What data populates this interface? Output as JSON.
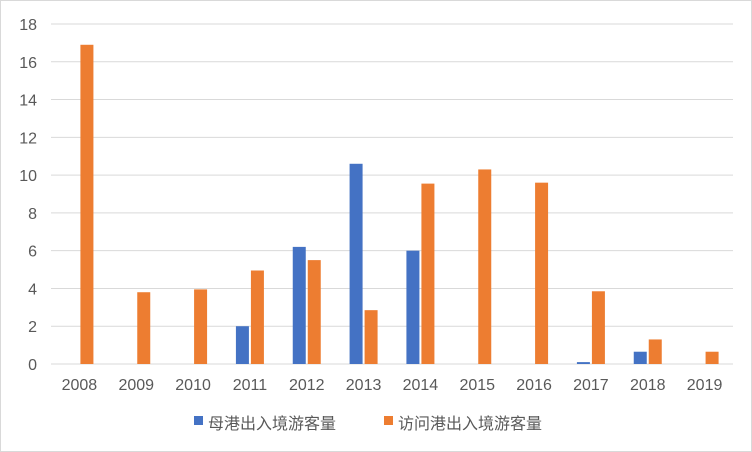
{
  "chart_data": {
    "type": "bar",
    "categories": [
      "2008",
      "2009",
      "2010",
      "2011",
      "2012",
      "2013",
      "2014",
      "2015",
      "2016",
      "2017",
      "2018",
      "2019"
    ],
    "series": [
      {
        "name": "母港出入境游客量",
        "color": "#4472C4",
        "values": [
          0,
          0,
          0,
          2.0,
          6.2,
          10.6,
          6.0,
          0,
          0,
          0.1,
          0.65,
          0
        ]
      },
      {
        "name": "访问港出入境游客量",
        "color": "#ED7D31",
        "values": [
          16.9,
          3.8,
          3.95,
          4.95,
          5.5,
          2.85,
          9.55,
          10.3,
          9.6,
          3.85,
          1.3,
          0.65
        ]
      }
    ],
    "y_ticks": [
      "0",
      "2",
      "4",
      "6",
      "8",
      "10",
      "12",
      "14",
      "16",
      "18"
    ],
    "ylim": [
      0,
      18
    ],
    "grid": true,
    "legend_position": "bottom",
    "gridline_color": "#d9d9d9",
    "text_color": "#595959"
  }
}
